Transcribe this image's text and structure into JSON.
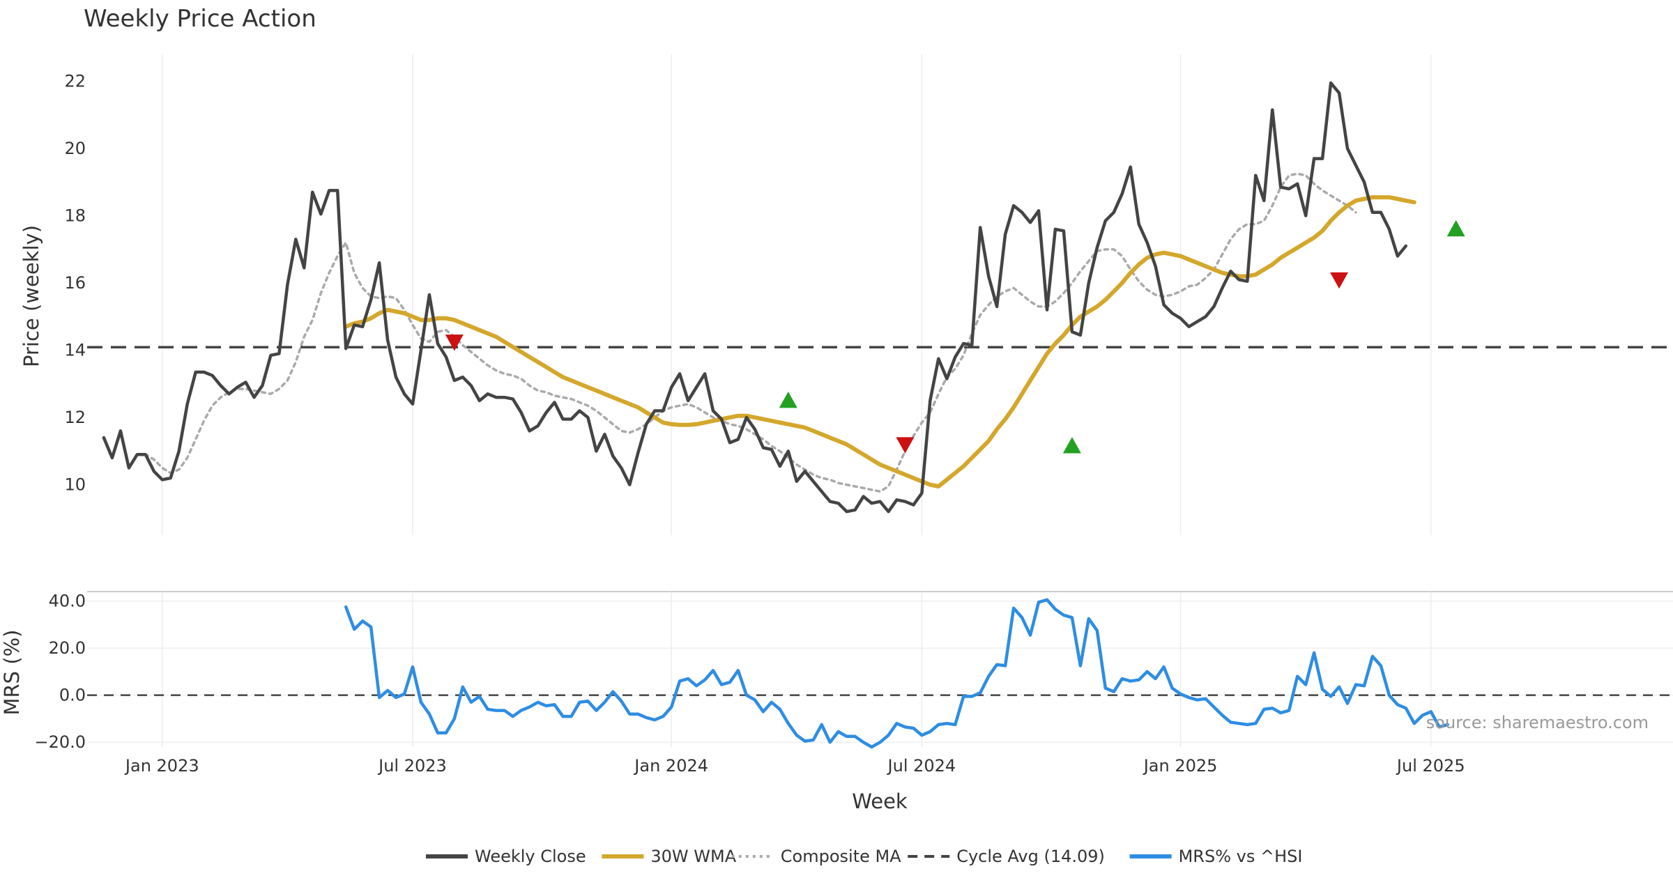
{
  "chart_data": {
    "type": "line",
    "title": "Weekly Price Action",
    "xlabel": "Week",
    "ylabel": "Price (weekly)",
    "x_ticks": [
      "Jan 2023",
      "Jul 2023",
      "Jan 2024",
      "Jul 2024",
      "Jan 2025",
      "Jul 2025"
    ],
    "x_tick_weeks": [
      7,
      37,
      68,
      98,
      129,
      159
    ],
    "week_range": [
      -2,
      188
    ],
    "price_panel": {
      "ylim": [
        8.5,
        22.8
      ],
      "y_ticks": [
        10,
        12,
        14,
        16,
        18,
        20,
        22
      ],
      "series": [
        {
          "name": "Weekly Close",
          "color": "#444444",
          "style": "solid",
          "start_week": 0,
          "values": [
            11.4,
            10.8,
            11.6,
            10.5,
            10.9,
            10.9,
            10.4,
            10.15,
            10.2,
            11.0,
            12.4,
            13.35,
            13.35,
            13.25,
            12.95,
            12.7,
            12.9,
            13.05,
            12.6,
            12.95,
            13.85,
            13.9,
            15.95,
            17.3,
            16.45,
            18.7,
            18.05,
            18.75,
            18.75,
            14.05,
            14.75,
            14.7,
            15.5,
            16.6,
            14.3,
            13.2,
            12.7,
            12.4,
            14.0,
            15.65,
            14.2,
            13.8,
            13.1,
            13.2,
            12.95,
            12.5,
            12.7,
            12.6,
            12.6,
            12.55,
            12.15,
            11.6,
            11.75,
            12.15,
            12.45,
            11.95,
            11.95,
            12.2,
            12.0,
            11.0,
            11.5,
            10.85,
            10.5,
            10.0,
            10.95,
            11.8,
            12.2,
            12.2,
            12.9,
            13.3,
            12.5,
            12.9,
            13.3,
            12.2,
            11.95,
            11.25,
            11.35,
            12.0,
            11.65,
            11.1,
            11.05,
            10.55,
            11.0,
            10.1,
            10.4,
            10.1,
            9.8,
            9.5,
            9.45,
            9.2,
            9.25,
            9.65,
            9.45,
            9.5,
            9.2,
            9.55,
            9.5,
            9.4,
            9.75,
            12.5,
            13.75,
            13.15,
            13.8,
            14.2,
            14.15,
            17.65,
            16.2,
            15.3,
            17.45,
            18.3,
            18.1,
            17.8,
            18.15,
            15.2,
            17.6,
            17.55,
            14.55,
            14.45,
            16.0,
            17.05,
            17.85,
            18.1,
            18.65,
            19.45,
            17.75,
            17.2,
            16.5,
            15.35,
            15.1,
            14.95,
            14.7,
            14.85,
            15.0,
            15.3,
            15.85,
            16.35,
            16.1,
            16.05,
            19.2,
            18.45,
            21.15,
            18.85,
            18.8,
            18.95,
            18.0,
            19.7,
            19.7,
            21.95,
            21.65,
            20.0,
            19.5,
            19.0,
            18.1,
            18.1,
            17.6,
            16.8,
            17.1
          ]
        },
        {
          "name": "30W WMA",
          "color": "#D4A72C",
          "style": "solid",
          "start_week": 29,
          "values": [
            14.7,
            14.8,
            14.85,
            14.95,
            15.1,
            15.2,
            15.15,
            15.1,
            15.0,
            14.9,
            14.9,
            14.95,
            14.95,
            14.9,
            14.8,
            14.7,
            14.6,
            14.5,
            14.4,
            14.25,
            14.1,
            13.95,
            13.8,
            13.65,
            13.5,
            13.35,
            13.2,
            13.1,
            13.0,
            12.9,
            12.8,
            12.7,
            12.6,
            12.5,
            12.4,
            12.3,
            12.15,
            12.0,
            11.85,
            11.8,
            11.78,
            11.78,
            11.8,
            11.85,
            11.9,
            11.95,
            12.0,
            12.05,
            12.05,
            12.0,
            11.95,
            11.9,
            11.85,
            11.8,
            11.75,
            11.7,
            11.6,
            11.5,
            11.4,
            11.3,
            11.2,
            11.05,
            10.9,
            10.75,
            10.6,
            10.5,
            10.4,
            10.3,
            10.2,
            10.1,
            10.0,
            9.95,
            10.15,
            10.35,
            10.55,
            10.8,
            11.05,
            11.3,
            11.65,
            11.95,
            12.3,
            12.7,
            13.1,
            13.5,
            13.9,
            14.2,
            14.45,
            14.75,
            15.0,
            15.15,
            15.3,
            15.5,
            15.75,
            16.0,
            16.3,
            16.55,
            16.75,
            16.85,
            16.9,
            16.85,
            16.8,
            16.7,
            16.6,
            16.5,
            16.4,
            16.3,
            16.25,
            16.2,
            16.2,
            16.25,
            16.4,
            16.55,
            16.75,
            16.9,
            17.05,
            17.2,
            17.35,
            17.55,
            17.85,
            18.1,
            18.3,
            18.45,
            18.5,
            18.55,
            18.55,
            18.55,
            18.5,
            18.45,
            18.4
          ]
        },
        {
          "name": "Composite MA",
          "color": "#AAAAAA",
          "style": "dotted",
          "start_week": 4,
          "values": [
            10.9,
            10.9,
            10.75,
            10.5,
            10.35,
            10.45,
            10.8,
            11.35,
            11.9,
            12.35,
            12.6,
            12.75,
            12.85,
            12.85,
            12.8,
            12.75,
            12.7,
            12.85,
            13.1,
            13.65,
            14.4,
            14.9,
            15.7,
            16.3,
            16.8,
            17.2,
            16.3,
            15.85,
            15.6,
            15.55,
            15.6,
            15.55,
            15.2,
            14.75,
            14.35,
            14.25,
            14.55,
            14.6,
            14.4,
            14.15,
            13.95,
            13.75,
            13.55,
            13.4,
            13.3,
            13.25,
            13.15,
            12.95,
            12.8,
            12.75,
            12.65,
            12.6,
            12.55,
            12.45,
            12.35,
            12.2,
            12.0,
            11.8,
            11.6,
            11.55,
            11.65,
            11.8,
            12.0,
            12.2,
            12.3,
            12.35,
            12.4,
            12.3,
            12.15,
            12.0,
            11.9,
            11.8,
            11.75,
            11.65,
            11.5,
            11.35,
            11.15,
            11.0,
            10.8,
            10.6,
            10.45,
            10.3,
            10.2,
            10.15,
            10.05,
            10.0,
            9.95,
            9.9,
            9.85,
            9.8,
            9.95,
            10.45,
            11.0,
            11.45,
            11.85,
            12.15,
            12.7,
            13.2,
            13.45,
            13.85,
            14.5,
            15.05,
            15.35,
            15.6,
            15.75,
            15.85,
            15.65,
            15.45,
            15.3,
            15.3,
            15.45,
            15.7,
            16.0,
            16.35,
            16.65,
            16.95,
            17.0,
            17.0,
            16.8,
            16.4,
            16.05,
            15.8,
            15.65,
            15.6,
            15.65,
            15.75,
            15.9,
            15.95,
            16.15,
            16.4,
            16.85,
            17.3,
            17.6,
            17.75,
            17.75,
            17.85,
            18.3,
            18.85,
            19.2,
            19.25,
            19.2,
            18.95,
            18.75,
            18.6,
            18.45,
            18.3,
            18.1
          ]
        },
        {
          "name": "Cycle Avg (14.09)",
          "color": "#444444",
          "style": "dashed",
          "value": 14.09
        }
      ],
      "signals": [
        {
          "type": "sell",
          "week": 42,
          "price": 14.25,
          "color": "#CC1111"
        },
        {
          "type": "buy",
          "week": 82,
          "price": 12.5,
          "color": "#22A022"
        },
        {
          "type": "sell",
          "week": 96,
          "price": 11.2,
          "color": "#CC1111"
        },
        {
          "type": "buy",
          "week": 116,
          "price": 11.15,
          "color": "#22A022"
        },
        {
          "type": "sell",
          "week": 148,
          "price": 16.1,
          "color": "#CC1111"
        },
        {
          "type": "buy",
          "week": 162,
          "price": 17.6,
          "color": "#22A022"
        }
      ]
    },
    "mrs_panel": {
      "ylabel": "MRS (%)",
      "ylim": [
        -22,
        44
      ],
      "y_ticks": [
        -20,
        0,
        20,
        40
      ],
      "y_tick_labels": [
        "−20.0",
        "0.0",
        "20.0",
        "40.0"
      ],
      "series": [
        {
          "name": "MRS% vs ^HSI",
          "color": "#2E8DE3",
          "style": "solid",
          "start_week": 29,
          "values": [
            37.5,
            28.0,
            31.5,
            29.0,
            -1.0,
            2.0,
            -1.0,
            0.5,
            12.0,
            -3.0,
            -8.0,
            -16.0,
            -16.0,
            -10.0,
            3.5,
            -3.0,
            -0.5,
            -6.0,
            -6.5,
            -6.5,
            -9.0,
            -6.5,
            -5.0,
            -3.0,
            -4.5,
            -4.0,
            -9.0,
            -9.0,
            -3.0,
            -2.5,
            -6.5,
            -3.0,
            1.5,
            -2.5,
            -8.0,
            -8.0,
            -9.5,
            -10.5,
            -9.0,
            -5.0,
            6.0,
            7.0,
            4.0,
            6.5,
            10.5,
            4.5,
            5.5,
            10.5,
            0.0,
            -2.0,
            -7.0,
            -3.0,
            -6.0,
            -12.0,
            -17.0,
            -19.5,
            -19.0,
            -12.5,
            -20.0,
            -15.5,
            -17.5,
            -17.5,
            -20.0,
            -22.0,
            -20.0,
            -17.0,
            -12.0,
            -13.5,
            -14.0,
            -17.0,
            -15.5,
            -12.5,
            -12.0,
            -12.5,
            -0.5,
            -0.5,
            1.0,
            8.0,
            13.0,
            12.5,
            37.0,
            33.0,
            25.5,
            39.5,
            40.5,
            36.5,
            34.0,
            33.0,
            12.5,
            32.5,
            27.5,
            3.0,
            1.5,
            7.0,
            6.0,
            6.5,
            10.0,
            7.0,
            12.0,
            3.0,
            0.5,
            -1.0,
            -2.0,
            -1.5,
            -5.0,
            -8.5,
            -11.5,
            -12.0,
            -12.5,
            -12.0,
            -6.0,
            -5.5,
            -7.5,
            -6.5,
            8.0,
            4.5,
            18.0,
            2.5,
            -0.5,
            3.5,
            -3.5,
            4.5,
            4.0,
            16.5,
            12.5,
            0.0,
            -4.0,
            -5.5,
            -12.0,
            -8.5,
            -7.0,
            -13.5,
            -12.5
          ]
        }
      ],
      "zero_line": {
        "value": 0,
        "style": "dashed",
        "color": "#444444"
      }
    },
    "legend": {
      "placement": "bottom-center",
      "entries": [
        {
          "label": "Weekly Close",
          "color": "#444444",
          "style": "solid"
        },
        {
          "label": "30W WMA",
          "color": "#D4A72C",
          "style": "solid"
        },
        {
          "label": "Composite MA",
          "color": "#AAAAAA",
          "style": "dotted"
        },
        {
          "label": "Cycle Avg (14.09)",
          "color": "#444444",
          "style": "dashed"
        },
        {
          "label": "MRS% vs ^HSI",
          "color": "#2E8DE3",
          "style": "solid"
        }
      ]
    },
    "annotation": "source: sharemaestro.com",
    "grid": true
  }
}
